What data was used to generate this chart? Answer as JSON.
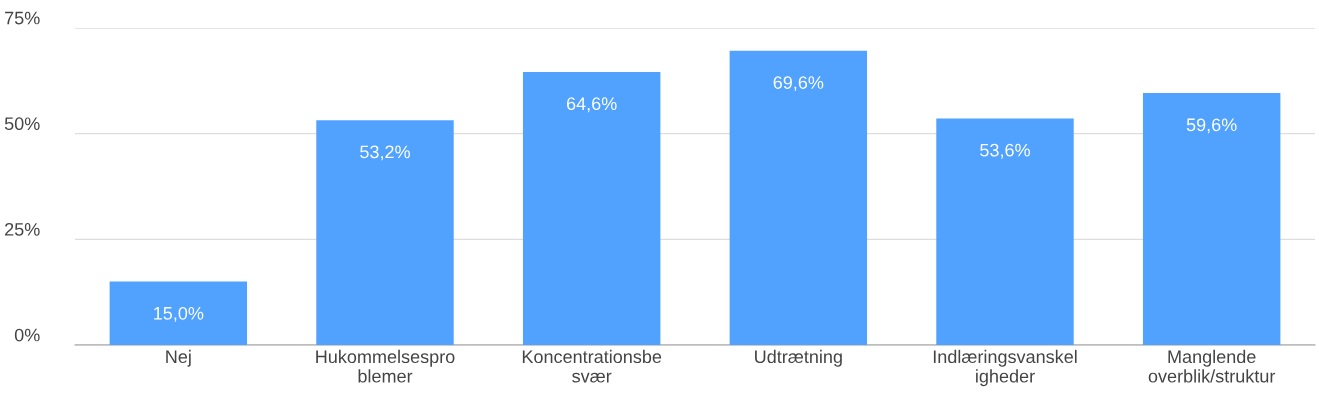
{
  "chart_data": {
    "type": "bar",
    "categories": [
      "Nej",
      "Hukommelsespro\nblemer",
      "Koncentrationsbe\nsvær",
      "Udtrætning",
      "Indlæringsvanskel\nigheder",
      "Manglende\noverblik/struktur"
    ],
    "values": [
      15.0,
      53.2,
      64.6,
      69.6,
      53.6,
      59.6
    ],
    "value_labels": [
      "15,0%",
      "53,2%",
      "64,6%",
      "69,6%",
      "53,6%",
      "59,6%"
    ],
    "color": "#51a2ff",
    "ylim": [
      0,
      75
    ],
    "yticks": [
      {
        "value": 0,
        "label": "0%"
      },
      {
        "value": 25,
        "label": "25%"
      },
      {
        "value": 50,
        "label": "50%"
      },
      {
        "value": 75,
        "label": "75%"
      }
    ],
    "grid": "y",
    "legend": false
  }
}
